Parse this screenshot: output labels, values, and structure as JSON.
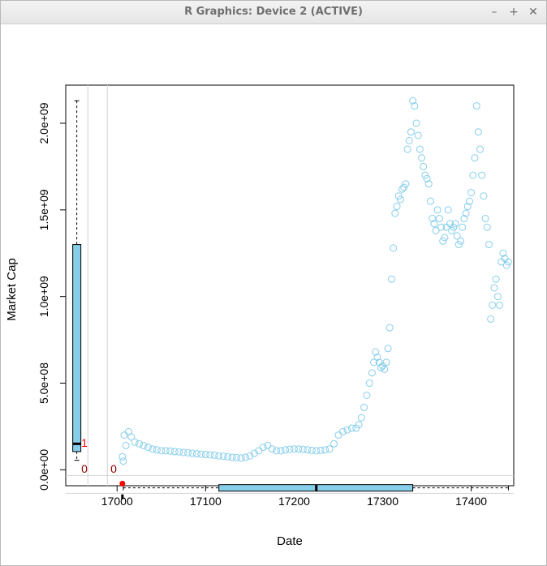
{
  "window": {
    "title": "R Graphics: Device 2 (ACTIVE)",
    "minimize_icon": "minimize-icon",
    "maximize_icon": "maximize-icon",
    "close_icon": "close-icon",
    "minimize_glyph": "–",
    "maximize_glyph": "+",
    "close_glyph": "✕"
  },
  "chart_data": {
    "type": "scatter",
    "title": "",
    "xlabel": "Date",
    "ylabel": "Market Cap",
    "xlim": [
      16942,
      17448
    ],
    "ylim": [
      -92000000,
      2220000000
    ],
    "x_ticks": [
      17000,
      17100,
      17200,
      17300,
      17400
    ],
    "y_ticks": [
      0,
      500000000,
      1000000000,
      1500000000,
      2000000000
    ],
    "y_tick_labels": [
      "0.0e+00",
      "5.0e+08",
      "1.0e+09",
      "1.5e+09",
      "2.0e+09"
    ],
    "point_color": "#87ceeb",
    "box_fill": "#87ceeb",
    "missing_color": "#ff0000",
    "count_color": "#8b0000",
    "grid": false,
    "margin_counts": {
      "y_missing_count": "1",
      "x_missing_count": "0",
      "both_missing_count": "0"
    },
    "y_boxplot": {
      "min": 55000000,
      "q1": 105000000,
      "median": 150000000,
      "q3": 1300000000,
      "max": 2130000000
    },
    "x_boxplot": {
      "min": 17007,
      "q1": 17115,
      "median": 17225,
      "q3": 17334,
      "max": 17442
    },
    "missing_y_point": {
      "x": 17006
    },
    "series": [
      {
        "x": [
          17006,
          17007,
          17008,
          17010,
          17013,
          17016,
          17020,
          17025,
          17030,
          17035,
          17040,
          17045,
          17050,
          17055,
          17060,
          17065,
          17070,
          17075,
          17080,
          17085,
          17090,
          17095,
          17100,
          17105,
          17110,
          17115,
          17120,
          17125,
          17130,
          17135,
          17140,
          17145,
          17150,
          17155,
          17160,
          17165,
          17170,
          17175,
          17180,
          17185,
          17190,
          17195,
          17200,
          17205,
          17210,
          17215,
          17220,
          17225,
          17230,
          17235,
          17240,
          17245,
          17250,
          17255,
          17260,
          17265,
          17270,
          17273,
          17276,
          17279,
          17282,
          17285,
          17288,
          17290,
          17292,
          17294,
          17296,
          17298,
          17300,
          17302,
          17304,
          17306,
          17308,
          17310,
          17312,
          17314,
          17316,
          17318,
          17320,
          17322,
          17324,
          17326,
          17328,
          17330,
          17332,
          17334,
          17336,
          17338,
          17340,
          17342,
          17344,
          17346,
          17348,
          17350,
          17352,
          17354,
          17356,
          17358,
          17360,
          17362,
          17364,
          17366,
          17368,
          17370,
          17372,
          17374,
          17376,
          17378,
          17380,
          17382,
          17384,
          17386,
          17388,
          17390,
          17392,
          17394,
          17396,
          17398,
          17400,
          17402,
          17404,
          17406,
          17408,
          17410,
          17412,
          17414,
          17416,
          17418,
          17420,
          17422,
          17424,
          17426,
          17428,
          17430,
          17432,
          17434,
          17436,
          17438,
          17440,
          17442
        ],
        "y": [
          75000000,
          50000000,
          200000000,
          140000000,
          220000000,
          190000000,
          160000000,
          150000000,
          140000000,
          130000000,
          120000000,
          115000000,
          110000000,
          110000000,
          108000000,
          105000000,
          103000000,
          100000000,
          98000000,
          95000000,
          92000000,
          90000000,
          88000000,
          86000000,
          84000000,
          80000000,
          78000000,
          75000000,
          72000000,
          70000000,
          68000000,
          72000000,
          80000000,
          95000000,
          110000000,
          130000000,
          140000000,
          120000000,
          110000000,
          110000000,
          115000000,
          118000000,
          120000000,
          120000000,
          118000000,
          115000000,
          112000000,
          110000000,
          112000000,
          115000000,
          120000000,
          150000000,
          200000000,
          220000000,
          230000000,
          240000000,
          240000000,
          260000000,
          300000000,
          360000000,
          430000000,
          500000000,
          560000000,
          620000000,
          680000000,
          650000000,
          620000000,
          590000000,
          600000000,
          580000000,
          620000000,
          700000000,
          820000000,
          1100000000,
          1280000000,
          1480000000,
          1520000000,
          1580000000,
          1560000000,
          1620000000,
          1630000000,
          1650000000,
          1850000000,
          1900000000,
          1950000000,
          2130000000,
          2100000000,
          2000000000,
          1930000000,
          1850000000,
          1800000000,
          1750000000,
          1700000000,
          1680000000,
          1650000000,
          1550000000,
          1450000000,
          1420000000,
          1380000000,
          1500000000,
          1450000000,
          1400000000,
          1320000000,
          1340000000,
          1400000000,
          1500000000,
          1420000000,
          1380000000,
          1400000000,
          1420000000,
          1350000000,
          1300000000,
          1320000000,
          1400000000,
          1450000000,
          1480000000,
          1520000000,
          1550000000,
          1600000000,
          1700000000,
          1800000000,
          2100000000,
          1950000000,
          1850000000,
          1700000000,
          1580000000,
          1450000000,
          1400000000,
          1300000000,
          870000000,
          950000000,
          1050000000,
          1100000000,
          1000000000,
          950000000,
          1200000000,
          1250000000,
          1220000000,
          1180000000,
          1200000000
        ]
      }
    ]
  }
}
